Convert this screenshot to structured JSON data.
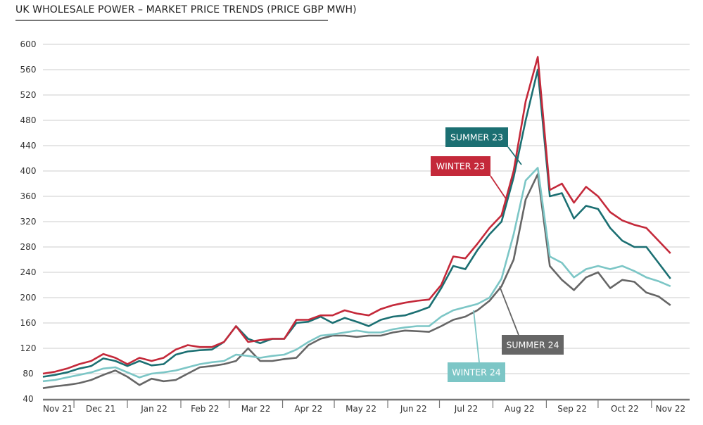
{
  "title": "UK WHOLESALE POWER – MARKET PRICE TRENDS (PRICE GBP MWH)",
  "chart_data": {
    "type": "line",
    "title": "UK WHOLESALE POWER – MARKET PRICE TRENDS (PRICE GBP MWH)",
    "xlabel": "",
    "ylabel": "",
    "ylim": [
      40,
      600
    ],
    "yticks": [
      40,
      80,
      120,
      160,
      200,
      240,
      280,
      320,
      360,
      400,
      440,
      480,
      520,
      560,
      600
    ],
    "xticks": [
      {
        "label": "Nov 21",
        "start": "2021-11-13",
        "end": "2021-12-01"
      },
      {
        "label": "Dec 21",
        "start": "2021-12-01",
        "end": "2022-01-01"
      },
      {
        "label": "Jan 22",
        "start": "2022-01-01",
        "end": "2022-02-01"
      },
      {
        "label": "Feb 22",
        "start": "2022-02-01",
        "end": "2022-03-01"
      },
      {
        "label": "Mar 22",
        "start": "2022-03-01",
        "end": "2022-04-01"
      },
      {
        "label": "Apr 22",
        "start": "2022-04-01",
        "end": "2022-05-01"
      },
      {
        "label": "May 22",
        "start": "2022-05-01",
        "end": "2022-06-01"
      },
      {
        "label": "Jun 22",
        "start": "2022-06-01",
        "end": "2022-07-01"
      },
      {
        "label": "Jul 22",
        "start": "2022-07-01",
        "end": "2022-08-01"
      },
      {
        "label": "Aug 22",
        "start": "2022-08-01",
        "end": "2022-09-01"
      },
      {
        "label": "Sep 22",
        "start": "2022-09-01",
        "end": "2022-10-01"
      },
      {
        "label": "Oct 22",
        "start": "2022-10-01",
        "end": "2022-11-01"
      },
      {
        "label": "Nov 22",
        "start": "2022-11-01",
        "end": "2022-11-24"
      }
    ],
    "grid": true,
    "legend": "inline labels",
    "x": [
      "2021-11-13",
      "2021-11-20",
      "2021-11-27",
      "2021-12-04",
      "2021-12-11",
      "2021-12-18",
      "2021-12-25",
      "2022-01-01",
      "2022-01-08",
      "2022-01-15",
      "2022-01-22",
      "2022-01-29",
      "2022-02-05",
      "2022-02-12",
      "2022-02-19",
      "2022-02-26",
      "2022-03-05",
      "2022-03-12",
      "2022-03-19",
      "2022-03-26",
      "2022-04-02",
      "2022-04-09",
      "2022-04-16",
      "2022-04-23",
      "2022-04-30",
      "2022-05-07",
      "2022-05-14",
      "2022-05-21",
      "2022-05-28",
      "2022-06-04",
      "2022-06-11",
      "2022-06-18",
      "2022-06-25",
      "2022-07-02",
      "2022-07-09",
      "2022-07-16",
      "2022-07-23",
      "2022-07-30",
      "2022-08-06",
      "2022-08-13",
      "2022-08-20",
      "2022-08-27",
      "2022-09-03",
      "2022-09-10",
      "2022-09-17",
      "2022-09-24",
      "2022-10-01",
      "2022-10-08",
      "2022-10-15",
      "2022-10-22",
      "2022-10-29",
      "2022-11-05",
      "2022-11-12"
    ],
    "series": [
      {
        "name": "WINTER 23",
        "color": "#c4293a",
        "values": [
          80,
          83,
          88,
          95,
          100,
          111,
          105,
          95,
          105,
          100,
          105,
          118,
          125,
          122,
          122,
          130,
          155,
          130,
          133,
          135,
          135,
          165,
          165,
          172,
          172,
          180,
          175,
          172,
          182,
          188,
          192,
          195,
          197,
          220,
          265,
          262,
          285,
          310,
          330,
          400,
          510,
          580,
          370,
          380,
          350,
          375,
          360,
          335,
          322,
          315,
          310,
          290,
          270
        ]
      },
      {
        "name": "SUMMER 23",
        "color": "#1b6f72",
        "values": [
          75,
          78,
          82,
          88,
          92,
          104,
          100,
          92,
          100,
          93,
          95,
          110,
          115,
          117,
          118,
          130,
          155,
          135,
          128,
          135,
          135,
          160,
          162,
          170,
          160,
          168,
          162,
          155,
          165,
          170,
          172,
          178,
          185,
          215,
          250,
          245,
          275,
          300,
          320,
          390,
          480,
          560,
          360,
          365,
          325,
          345,
          340,
          310,
          290,
          280,
          280,
          255,
          230
        ]
      },
      {
        "name": "WINTER 24",
        "color": "#7cc6c6",
        "values": [
          68,
          70,
          74,
          78,
          82,
          88,
          90,
          82,
          74,
          80,
          82,
          85,
          90,
          95,
          98,
          100,
          110,
          108,
          105,
          108,
          110,
          118,
          130,
          140,
          142,
          145,
          148,
          145,
          145,
          150,
          153,
          155,
          155,
          170,
          180,
          185,
          190,
          200,
          230,
          300,
          385,
          405,
          265,
          255,
          232,
          245,
          250,
          245,
          250,
          242,
          232,
          226,
          218
        ]
      },
      {
        "name": "SUMMER 24",
        "color": "#666666",
        "values": [
          57,
          60,
          62,
          65,
          70,
          78,
          85,
          75,
          62,
          72,
          68,
          70,
          80,
          90,
          92,
          95,
          100,
          120,
          100,
          100,
          103,
          105,
          125,
          135,
          140,
          140,
          138,
          140,
          140,
          145,
          148,
          147,
          146,
          155,
          165,
          170,
          180,
          195,
          218,
          260,
          355,
          395,
          250,
          228,
          212,
          232,
          240,
          215,
          228,
          225,
          208,
          202,
          188
        ]
      }
    ]
  }
}
